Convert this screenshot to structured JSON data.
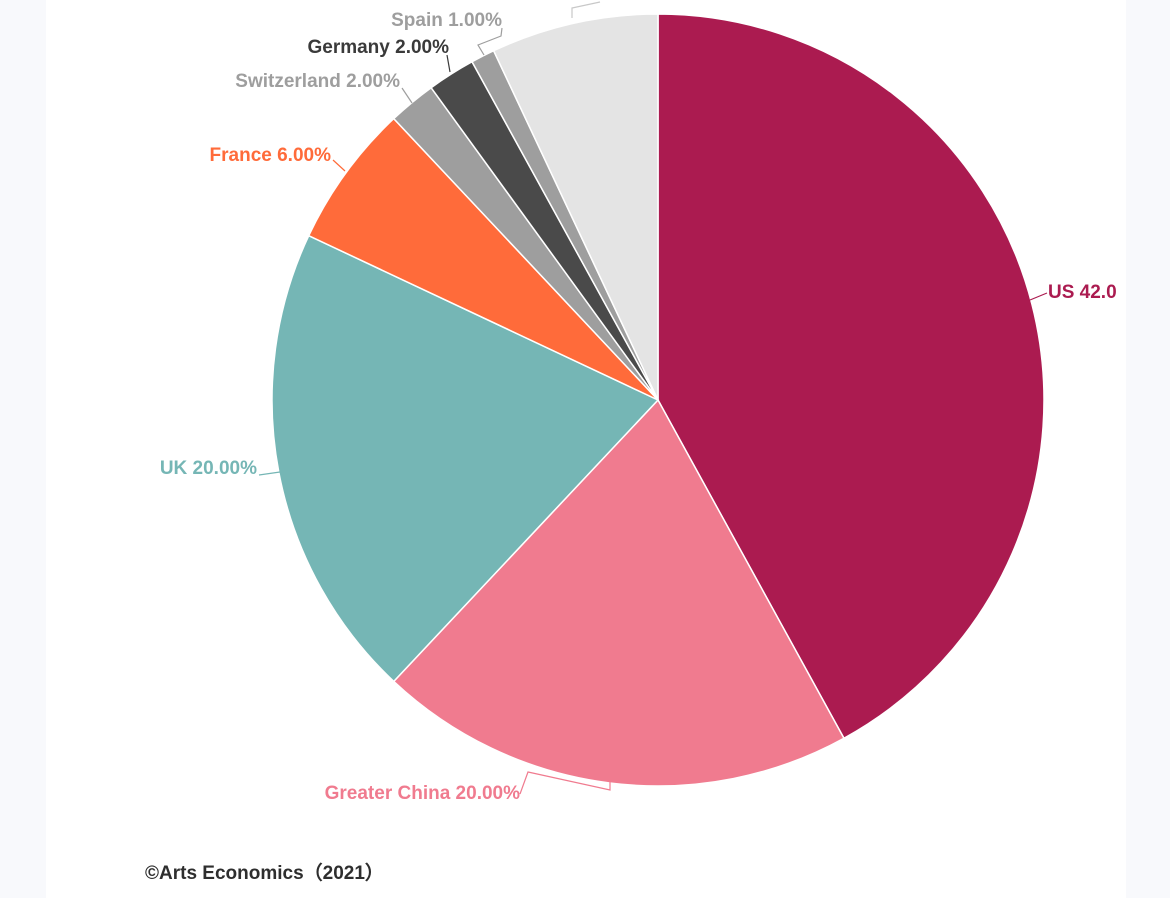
{
  "chart_data": {
    "type": "pie",
    "title": "",
    "slices": [
      {
        "label": "US 42.0",
        "value": 42.0,
        "color": "#ab1b50",
        "label_color": "#ab1b50"
      },
      {
        "label": "Greater China 20.00%",
        "value": 20.0,
        "color": "#f07b8f",
        "label_color": "#f07b8f"
      },
      {
        "label": "UK 20.00%",
        "value": 20.0,
        "color": "#75b6b5",
        "label_color": "#75b6b5"
      },
      {
        "label": "France 6.00%",
        "value": 6.0,
        "color": "#ff6b3a",
        "label_color": "#ff6b3a"
      },
      {
        "label": "Switzerland 2.00%",
        "value": 2.0,
        "color": "#9e9e9e",
        "label_color": "#9e9e9e"
      },
      {
        "label": "Germany 2.00%",
        "value": 2.0,
        "color": "#4a4a4a",
        "label_color": "#3a3a3a"
      },
      {
        "label": "Spain 1.00%",
        "value": 1.0,
        "color": "#9e9e9e",
        "label_color": "#9e9e9e"
      },
      {
        "label": "",
        "value": 7.0,
        "color": "#e4e4e4",
        "label_color": "#c8c8c8"
      }
    ]
  },
  "footer": {
    "credit": "©Arts Economics（2021）"
  }
}
